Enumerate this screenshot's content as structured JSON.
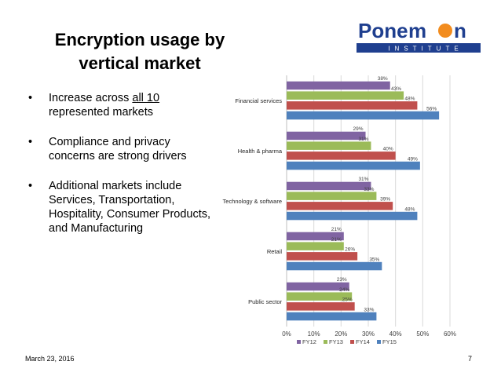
{
  "slide": {
    "title_line1": "Encryption usage by",
    "title_line2": "vertical market",
    "bullets": [
      {
        "pre": "Increase across ",
        "underlined": "all 10",
        "post": " represented markets"
      },
      {
        "text": "Compliance and privacy concerns are strong drivers"
      },
      {
        "text": "Additional markets include Services, Transportation, Hospitality, Consumer Products, and Manufacturing"
      }
    ],
    "footer_date": "March 23, 2016",
    "page_number": "7"
  },
  "logo": {
    "name": "Ponemon",
    "subtitle": "INSTITUTE",
    "colors": {
      "text": "#1f3f8f",
      "bar": "#1f3f8f",
      "dot": "#f28c1e"
    }
  },
  "chart_data": {
    "type": "bar",
    "orientation": "horizontal",
    "categories": [
      "Financial services",
      "Health & pharma",
      "Technology & software",
      "Retail",
      "Public sector"
    ],
    "series": [
      {
        "name": "FY12",
        "color": "#8064a2",
        "values": [
          38,
          29,
          31,
          21,
          23
        ]
      },
      {
        "name": "FY13",
        "color": "#9bbb59",
        "values": [
          43,
          31,
          33,
          21,
          24
        ]
      },
      {
        "name": "FY14",
        "color": "#c0504d",
        "values": [
          48,
          40,
          39,
          26,
          25
        ]
      },
      {
        "name": "FY15",
        "color": "#4f81bd",
        "values": [
          56,
          49,
          48,
          35,
          33
        ]
      }
    ],
    "value_suffix": "%",
    "xlim": [
      0,
      60
    ],
    "xticks": [
      "0%",
      "10%",
      "20%",
      "30%",
      "40%",
      "50%",
      "60%"
    ],
    "legend_position": "bottom",
    "grid": "vertical gridlines"
  }
}
